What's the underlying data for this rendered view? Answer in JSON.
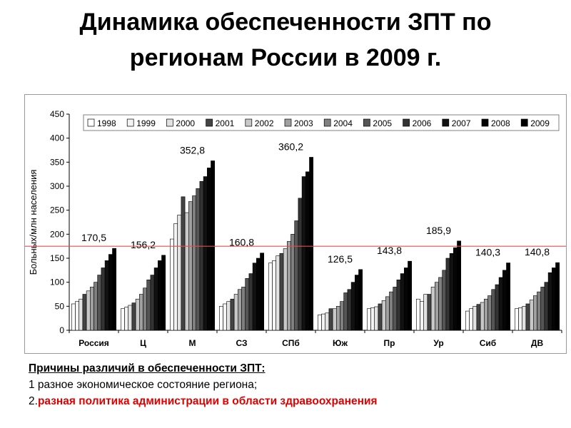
{
  "slide": {
    "title_line1": "Динамика обеспеченности ЗПТ по",
    "title_line2": "регионам России в 2009 г."
  },
  "chart_data": {
    "type": "bar",
    "ylabel": "Больных/млн населения",
    "ylim": [
      0,
      450
    ],
    "yticks": [
      0,
      50,
      100,
      150,
      200,
      250,
      300,
      350,
      400,
      450
    ],
    "grid": false,
    "legend_position": "top",
    "reference_line": {
      "value": 175,
      "color": "#e05050"
    },
    "categories": [
      "Россия",
      "Ц",
      "М",
      "СЗ",
      "СПб",
      "Юж",
      "Пр",
      "Ур",
      "Сиб",
      "ДВ"
    ],
    "series": [
      {
        "name": "1998",
        "color": "#ffffff",
        "values": [
          55,
          45,
          190,
          50,
          140,
          32,
          45,
          65,
          40,
          45
        ]
      },
      {
        "name": "1999",
        "color": "#f4f4f4",
        "values": [
          60,
          48,
          222,
          55,
          145,
          34,
          47,
          60,
          45,
          47
        ]
      },
      {
        "name": "2000",
        "color": "#e2e2e2",
        "values": [
          65,
          52,
          240,
          60,
          155,
          36,
          49,
          75,
          50,
          50
        ]
      },
      {
        "name": "2001",
        "color": "#444444",
        "values": [
          75,
          57,
          278,
          65,
          160,
          45,
          55,
          75,
          54,
          55
        ]
      },
      {
        "name": "2002",
        "color": "#c8c8c8",
        "values": [
          82,
          65,
          245,
          75,
          170,
          45,
          62,
          90,
          58,
          63
        ]
      },
      {
        "name": "2003",
        "color": "#a0a0a0",
        "values": [
          90,
          75,
          268,
          85,
          185,
          50,
          70,
          100,
          65,
          72
        ]
      },
      {
        "name": "2004",
        "color": "#808080",
        "values": [
          100,
          88,
          280,
          90,
          200,
          60,
          80,
          110,
          72,
          80
        ]
      },
      {
        "name": "2005",
        "color": "#555555",
        "values": [
          115,
          105,
          295,
          108,
          228,
          78,
          90,
          125,
          85,
          90
        ]
      },
      {
        "name": "2006",
        "color": "#333333",
        "values": [
          130,
          115,
          310,
          118,
          275,
          85,
          105,
          150,
          95,
          100
        ]
      },
      {
        "name": "2007",
        "color": "#111111",
        "values": [
          145,
          130,
          320,
          140,
          320,
          100,
          118,
          160,
          110,
          120
        ]
      },
      {
        "name": "2008",
        "color": "#050505",
        "values": [
          158,
          145,
          338,
          150,
          330,
          115,
          130,
          172,
          125,
          130
        ]
      },
      {
        "name": "2009",
        "color": "#000000",
        "values": [
          170.5,
          156.2,
          352.8,
          160.8,
          360.2,
          126.5,
          143.8,
          185.9,
          140.3,
          140.8
        ]
      }
    ],
    "data_labels": [
      "170,5",
      "156,2",
      "352,8",
      "160,8",
      "360,2",
      "126,5",
      "143,8",
      "185,9",
      "140,3",
      "140,8"
    ]
  },
  "reasons": {
    "heading": "Причины различий в обеспеченности ЗПТ:",
    "item1": " 1 разное экономическое состояние региона;",
    "item2_num": "2.",
    "item2_text": "разная политика администрации в области здравоохранения"
  }
}
